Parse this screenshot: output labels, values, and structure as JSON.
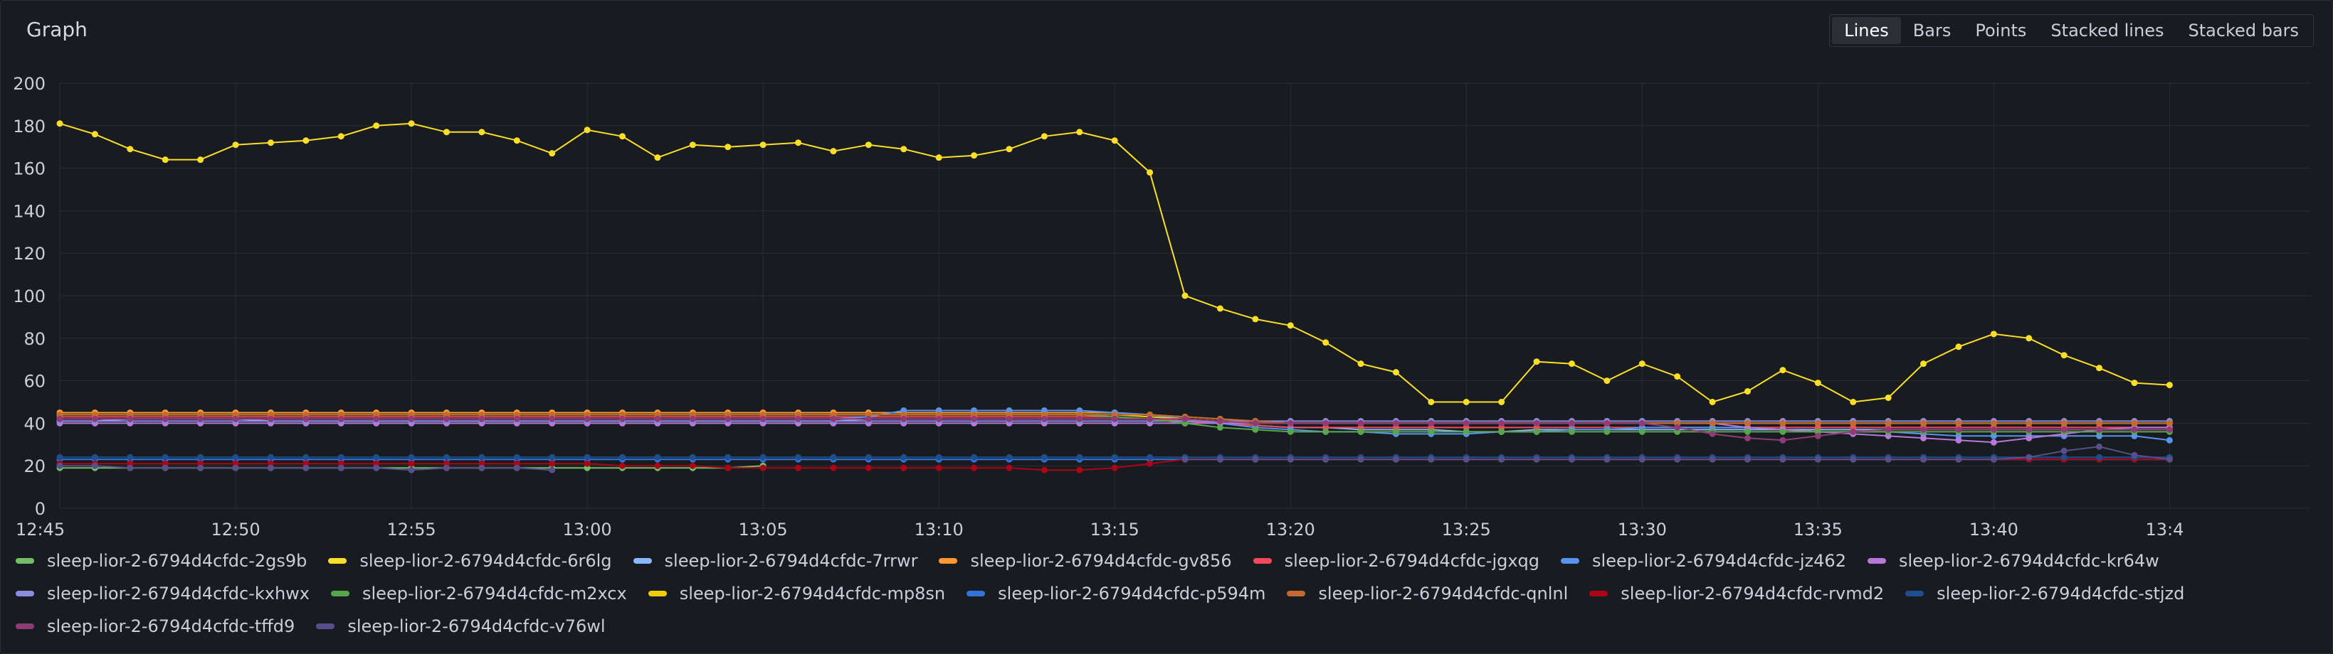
{
  "panel": {
    "title": "Graph"
  },
  "view_modes": [
    {
      "label": "Lines",
      "active": true
    },
    {
      "label": "Bars",
      "active": false
    },
    {
      "label": "Points",
      "active": false
    },
    {
      "label": "Stacked lines",
      "active": false
    },
    {
      "label": "Stacked bars",
      "active": false
    }
  ],
  "chart_data": {
    "type": "line",
    "title": "",
    "xlabel": "",
    "ylabel": "",
    "ylim": [
      0,
      200
    ],
    "yticks": [
      0,
      20,
      40,
      60,
      80,
      100,
      120,
      140,
      160,
      180,
      200
    ],
    "xlim": [
      "12:45",
      "13:49"
    ],
    "xticks": [
      "12:45",
      "12:50",
      "12:55",
      "13:00",
      "13:05",
      "13:10",
      "13:15",
      "13:20",
      "13:25",
      "13:30",
      "13:35",
      "13:40",
      "13:4"
    ],
    "x_step_minutes": 1,
    "grid": true,
    "legend_position": "bottom",
    "series": [
      {
        "name": "sleep-lior-2-6794d4cfdc-2gs9b",
        "color": "#73bf69",
        "values": [
          19,
          19,
          19,
          19,
          19,
          19,
          19,
          19,
          19,
          19,
          19,
          19,
          19,
          19,
          19,
          19,
          19,
          19,
          19,
          19,
          20
        ]
      },
      {
        "name": "sleep-lior-2-6794d4cfdc-6r6lg",
        "color": "#fade2a",
        "values": [
          181,
          176,
          169,
          164,
          164,
          171,
          172,
          173,
          175,
          180,
          181,
          177,
          177,
          173,
          167,
          178,
          175,
          165,
          171,
          170,
          171,
          172,
          168,
          171,
          169,
          165,
          166,
          169,
          175,
          177,
          173,
          158,
          100,
          94,
          89,
          86,
          78,
          68,
          64,
          50,
          50,
          50,
          69,
          68,
          60,
          68,
          62,
          50,
          55,
          65,
          59,
          50,
          52,
          68,
          76,
          82,
          80,
          72,
          66,
          59,
          58
        ]
      },
      {
        "name": "sleep-lior-2-6794d4cfdc-7rrwr",
        "color": "#8ab8ff",
        "values": [
          41,
          41,
          42,
          42,
          42,
          42,
          41,
          41,
          41,
          41,
          41,
          41,
          41,
          41,
          41,
          41,
          41,
          41,
          41,
          41,
          41,
          41,
          41,
          42,
          42,
          42,
          42,
          42,
          42,
          42,
          42,
          42,
          41,
          40,
          39,
          38,
          38,
          37,
          37,
          37,
          36,
          36,
          37,
          37,
          37,
          37,
          37,
          37,
          37,
          37,
          37,
          37,
          37,
          37,
          37,
          37,
          37,
          37,
          37,
          37,
          37
        ]
      },
      {
        "name": "sleep-lior-2-6794d4cfdc-gv856",
        "color": "#ff9830",
        "values": [
          45,
          45,
          45,
          45,
          45,
          45,
          45,
          45,
          45,
          45,
          45,
          45,
          45,
          45,
          45,
          45,
          45,
          45,
          45,
          45,
          45,
          45,
          45,
          45,
          45,
          45,
          45,
          45,
          45,
          45,
          45,
          44,
          43,
          42,
          41,
          40,
          40,
          40,
          40,
          40,
          40,
          40,
          40,
          40,
          40,
          40,
          40,
          40,
          40,
          40,
          40,
          40,
          40,
          40,
          40,
          40,
          40,
          40,
          40,
          40,
          40
        ]
      },
      {
        "name": "sleep-lior-2-6794d4cfdc-jgxqg",
        "color": "#f2495c",
        "values": [
          43,
          43,
          43,
          43,
          43,
          43,
          43,
          43,
          43,
          43,
          43,
          43,
          43,
          43,
          43,
          43,
          43,
          43,
          43,
          43,
          43,
          43,
          43,
          43,
          43,
          43,
          43,
          43,
          43,
          43,
          43,
          42,
          41,
          40,
          39,
          38,
          38,
          38,
          38,
          38,
          38,
          38,
          38,
          38,
          38,
          38,
          38,
          38,
          38,
          38,
          38,
          38,
          38,
          38,
          38,
          38,
          38,
          38,
          38,
          38,
          38
        ]
      },
      {
        "name": "sleep-lior-2-6794d4cfdc-jz462",
        "color": "#5794f2",
        "values": [
          42,
          42,
          42,
          42,
          42,
          42,
          42,
          42,
          42,
          42,
          42,
          42,
          42,
          42,
          42,
          42,
          42,
          42,
          42,
          42,
          42,
          42,
          42,
          43,
          46,
          46,
          46,
          46,
          46,
          46,
          45,
          44,
          42,
          40,
          38,
          37,
          36,
          36,
          35,
          35,
          35,
          36,
          36,
          37,
          37,
          38,
          38,
          38,
          38,
          37,
          36,
          36,
          36,
          35,
          34,
          34,
          34,
          34,
          34,
          34,
          32
        ]
      },
      {
        "name": "sleep-lior-2-6794d4cfdc-kr64w",
        "color": "#b877d9",
        "values": [
          40,
          40,
          40,
          40,
          40,
          40,
          40,
          40,
          40,
          40,
          40,
          40,
          40,
          40,
          40,
          40,
          40,
          40,
          40,
          40,
          40,
          40,
          40,
          40,
          40,
          40,
          40,
          40,
          40,
          40,
          40,
          40,
          40,
          40,
          40,
          40,
          40,
          40,
          40,
          40,
          40,
          40,
          40,
          40,
          40,
          40,
          40,
          40,
          38,
          37,
          36,
          35,
          34,
          33,
          32,
          31,
          33,
          35,
          37,
          38,
          38
        ]
      },
      {
        "name": "sleep-lior-2-6794d4cfdc-kxhwx",
        "color": "#8b8be0",
        "values": [
          41,
          41,
          41,
          41,
          41,
          41,
          41,
          41,
          41,
          41,
          41,
          41,
          41,
          41,
          41,
          41,
          41,
          41,
          41,
          41,
          41,
          41,
          41,
          41,
          41,
          41,
          41,
          41,
          41,
          41,
          41,
          41,
          41,
          41,
          41,
          41,
          41,
          41,
          41,
          41,
          41,
          41,
          41,
          41,
          41,
          41,
          41,
          41,
          41,
          41,
          41,
          41,
          41,
          41,
          41,
          41,
          41,
          41,
          41,
          41,
          41
        ]
      },
      {
        "name": "sleep-lior-2-6794d4cfdc-m2xcx",
        "color": "#56a64b",
        "values": [
          44,
          44,
          44,
          44,
          44,
          44,
          44,
          44,
          44,
          44,
          44,
          44,
          44,
          44,
          44,
          44,
          44,
          44,
          44,
          44,
          44,
          44,
          44,
          44,
          44,
          44,
          44,
          44,
          44,
          44,
          43,
          42,
          40,
          38,
          37,
          36,
          36,
          36,
          36,
          36,
          36,
          36,
          36,
          36,
          36,
          36,
          36,
          36,
          36,
          36,
          36,
          36,
          36,
          36,
          36,
          36,
          36,
          36,
          36,
          36,
          36
        ]
      },
      {
        "name": "sleep-lior-2-6794d4cfdc-mp8sn",
        "color": "#f2cc0c",
        "values": [
          44,
          44,
          44,
          44,
          44,
          44,
          44,
          44,
          44,
          44,
          44,
          44,
          44,
          44,
          44,
          44,
          44,
          44,
          44,
          44,
          44,
          44,
          44,
          44,
          44,
          44,
          44,
          44,
          44,
          44,
          44,
          43,
          42,
          41,
          40,
          40,
          40,
          40,
          40,
          40,
          40,
          40,
          40,
          40,
          40,
          40,
          40,
          40,
          40,
          40,
          40,
          40,
          40,
          40,
          40,
          40,
          40,
          40,
          40,
          40,
          40
        ]
      },
      {
        "name": "sleep-lior-2-6794d4cfdc-p594m",
        "color": "#3274d9",
        "values": [
          23,
          23,
          23,
          23,
          23,
          23,
          23,
          23,
          23,
          23,
          23,
          23,
          23,
          23,
          23,
          23,
          23,
          23,
          23,
          23,
          23,
          23,
          23,
          23,
          23,
          23,
          23,
          23,
          23,
          23,
          23,
          23,
          23,
          23,
          23,
          23,
          23,
          23,
          23,
          23,
          23,
          23,
          23,
          23,
          23,
          23,
          23,
          23,
          23,
          23,
          23,
          23,
          23,
          23,
          23,
          23,
          23,
          23,
          23,
          23,
          23
        ]
      },
      {
        "name": "sleep-lior-2-6794d4cfdc-qnlnl",
        "color": "#c4692f",
        "values": [
          44,
          44,
          44,
          44,
          44,
          44,
          44,
          44,
          44,
          44,
          44,
          44,
          44,
          44,
          44,
          44,
          44,
          44,
          44,
          44,
          44,
          44,
          44,
          44,
          44,
          44,
          44,
          44,
          44,
          44,
          44,
          44,
          43,
          42,
          41,
          40,
          40,
          40,
          40,
          40,
          40,
          40,
          40,
          40,
          40,
          40,
          40,
          40,
          40,
          40,
          40,
          40,
          40,
          40,
          40,
          40,
          40,
          40,
          40,
          40,
          40
        ]
      },
      {
        "name": "sleep-lior-2-6794d4cfdc-rvmd2",
        "color": "#ad0317",
        "values": [
          21,
          21,
          21,
          21,
          21,
          21,
          21,
          21,
          21,
          21,
          21,
          21,
          21,
          21,
          21,
          21,
          20,
          20,
          20,
          19,
          19,
          19,
          19,
          19,
          19,
          19,
          19,
          19,
          18,
          18,
          19,
          21,
          23,
          23,
          23,
          23,
          23,
          23,
          23,
          23,
          23,
          23,
          23,
          23,
          23,
          23,
          23,
          23,
          23,
          23,
          23,
          23,
          23,
          23,
          23,
          23,
          23,
          23,
          23,
          23,
          23
        ]
      },
      {
        "name": "sleep-lior-2-6794d4cfdc-stjzd",
        "color": "#1f4e8c",
        "values": [
          24,
          24,
          24,
          24,
          24,
          24,
          24,
          24,
          24,
          24,
          24,
          24,
          24,
          24,
          24,
          24,
          24,
          24,
          24,
          24,
          24,
          24,
          24,
          24,
          24,
          24,
          24,
          24,
          24,
          24,
          24,
          24,
          24,
          24,
          24,
          24,
          24,
          24,
          24,
          24,
          24,
          24,
          24,
          24,
          24,
          24,
          24,
          24,
          24,
          24,
          24,
          24,
          24,
          24,
          24,
          24,
          24,
          24,
          24,
          24,
          24
        ]
      },
      {
        "name": "sleep-lior-2-6794d4cfdc-tffd9",
        "color": "#8f3b76",
        "values": [
          42,
          42,
          42,
          42,
          42,
          42,
          42,
          42,
          42,
          42,
          42,
          42,
          42,
          42,
          42,
          42,
          42,
          42,
          42,
          42,
          42,
          42,
          42,
          42,
          42,
          42,
          42,
          42,
          42,
          42,
          42,
          42,
          42,
          41,
          40,
          40,
          40,
          40,
          40,
          40,
          40,
          40,
          40,
          40,
          40,
          40,
          38,
          35,
          33,
          32,
          34,
          36,
          37,
          37,
          37,
          37,
          37,
          37,
          37,
          37,
          37
        ]
      },
      {
        "name": "sleep-lior-2-6794d4cfdc-v76wl",
        "color": "#5a4e8a",
        "values": [
          20,
          20,
          19,
          19,
          19,
          19,
          19,
          19,
          19,
          19,
          18,
          19,
          19,
          19,
          18,
          null,
          null,
          null,
          null,
          null,
          null,
          null,
          null,
          null,
          null,
          null,
          null,
          null,
          null,
          null,
          null,
          null,
          23,
          23,
          23,
          23,
          23,
          23,
          23,
          23,
          23,
          23,
          23,
          23,
          23,
          23,
          23,
          23,
          23,
          23,
          23,
          23,
          23,
          23,
          23,
          23,
          24,
          27,
          29,
          25,
          23
        ]
      }
    ]
  }
}
